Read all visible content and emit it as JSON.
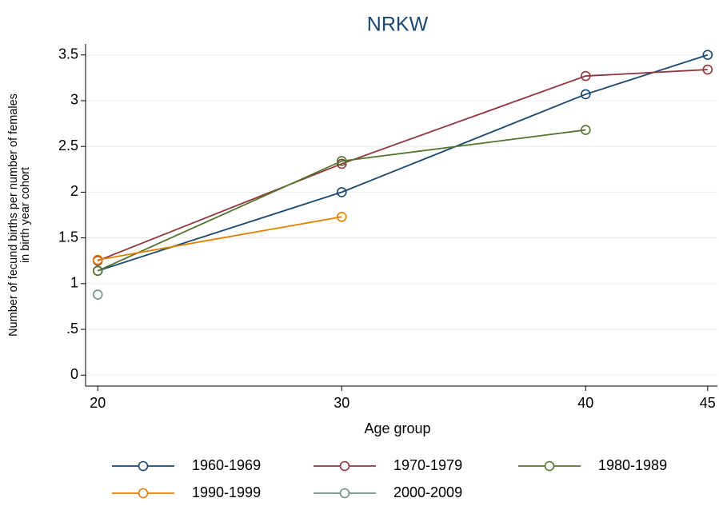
{
  "chart_data": {
    "type": "line",
    "title": "NRKW",
    "xlabel": "Age group",
    "ylabel": [
      "Number of fecund births per number of females",
      "in birth year cohort"
    ],
    "x": [
      20,
      30,
      40,
      45
    ],
    "xlim": [
      19.5,
      45.4
    ],
    "xticks": [
      20,
      30,
      40,
      45
    ],
    "ylim": [
      -0.12,
      3.62
    ],
    "yticks": [
      0,
      {
        "value": 0.5,
        "label": ".5"
      },
      1,
      1.5,
      2,
      2.5,
      3,
      3.5
    ],
    "grid": true,
    "legend": "bottom",
    "series": [
      {
        "name": "1960-1969",
        "color": "#1a476f",
        "values": [
          1.14,
          2.0,
          3.07,
          3.5
        ]
      },
      {
        "name": "1970-1979",
        "color": "#90353b",
        "values": [
          1.25,
          2.31,
          3.27,
          3.34
        ]
      },
      {
        "name": "1980-1989",
        "color": "#55752f",
        "values": [
          1.14,
          2.34,
          2.68,
          null
        ]
      },
      {
        "name": "1990-1999",
        "color": "#e37e00",
        "values": [
          1.26,
          1.73,
          null,
          null
        ]
      },
      {
        "name": "2000-2009",
        "color": "#6e8e84",
        "values": [
          0.88,
          null,
          null,
          null
        ]
      }
    ]
  }
}
